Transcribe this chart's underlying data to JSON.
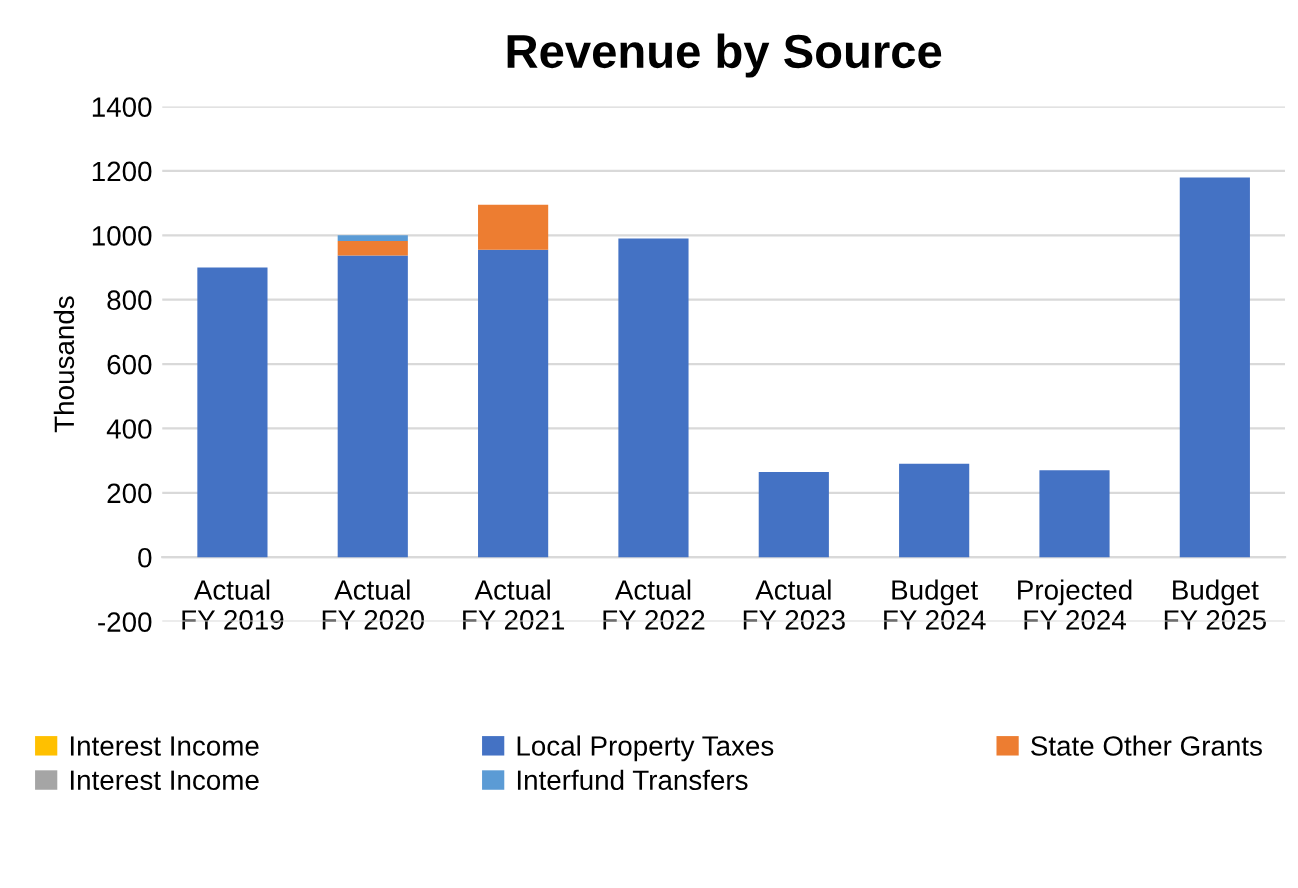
{
  "chart_data": {
    "type": "bar",
    "title": "Revenue by Source",
    "ylabel": "Thousands",
    "stacked": true,
    "categories": [
      "Actual\nFY 2019",
      "Actual\nFY 2020",
      "Actual\nFY 2021",
      "Actual\nFY 2022",
      "Actual\nFY 2023",
      "Budget\nFY 2024",
      "Projected\nFY 2024",
      "Budget\nFY 2025"
    ],
    "series": [
      {
        "name": "Interest Income",
        "color": "#ffc000",
        "values": [
          0,
          0,
          0,
          0,
          0,
          0,
          0,
          0
        ]
      },
      {
        "name": "Local Property Taxes",
        "color": "#4472c4",
        "values": [
          900,
          937,
          955,
          990,
          265,
          290,
          270,
          1180
        ]
      },
      {
        "name": "State Other Grants",
        "color": "#ed7d31",
        "values": [
          0,
          45,
          140,
          0,
          0,
          0,
          0,
          0
        ]
      },
      {
        "name": "Interest Income",
        "color": "#a5a5a5",
        "values": [
          0,
          0,
          0,
          0,
          0,
          0,
          0,
          0
        ]
      },
      {
        "name": "Interfund Transfers",
        "color": "#5b9bd5",
        "values": [
          0,
          18,
          0,
          0,
          0,
          0,
          0,
          0
        ]
      }
    ],
    "ylim": [
      -200,
      1400
    ],
    "yticks": [
      -200,
      0,
      200,
      400,
      600,
      800,
      1000,
      1200,
      1400
    ],
    "grid": "y",
    "legend": "bottom"
  }
}
